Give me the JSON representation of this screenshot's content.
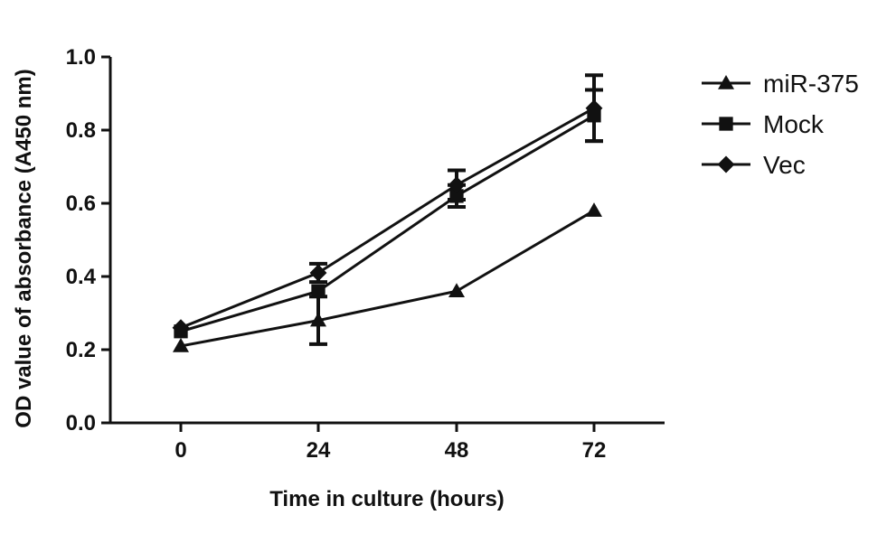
{
  "chart_data": {
    "type": "line",
    "title": "",
    "xlabel": "Time in culture (hours)",
    "ylabel": "OD value of absorbance (A450 nm)",
    "x": [
      0,
      24,
      48,
      72
    ],
    "x_tick_labels": [
      "0",
      "24",
      "48",
      "72"
    ],
    "ylim": [
      0.0,
      1.0
    ],
    "y_tick_labels": [
      "0.0",
      "0.2",
      "0.4",
      "0.6",
      "0.8",
      "1.0"
    ],
    "grid": false,
    "legend_position": "right",
    "series": [
      {
        "name": "miR-375",
        "marker": "triangle",
        "values": [
          0.21,
          0.28,
          0.36,
          0.58
        ],
        "errors": [
          0.0,
          0.065,
          0.0,
          0.0
        ]
      },
      {
        "name": "Mock",
        "marker": "square",
        "values": [
          0.25,
          0.36,
          0.62,
          0.84
        ],
        "errors": [
          0.0,
          0.0,
          0.03,
          0.07
        ]
      },
      {
        "name": "Vec",
        "marker": "diamond",
        "values": [
          0.26,
          0.41,
          0.65,
          0.86
        ],
        "errors": [
          0.0,
          0.025,
          0.04,
          0.09
        ]
      }
    ],
    "colors": {
      "line": "#111111"
    }
  }
}
